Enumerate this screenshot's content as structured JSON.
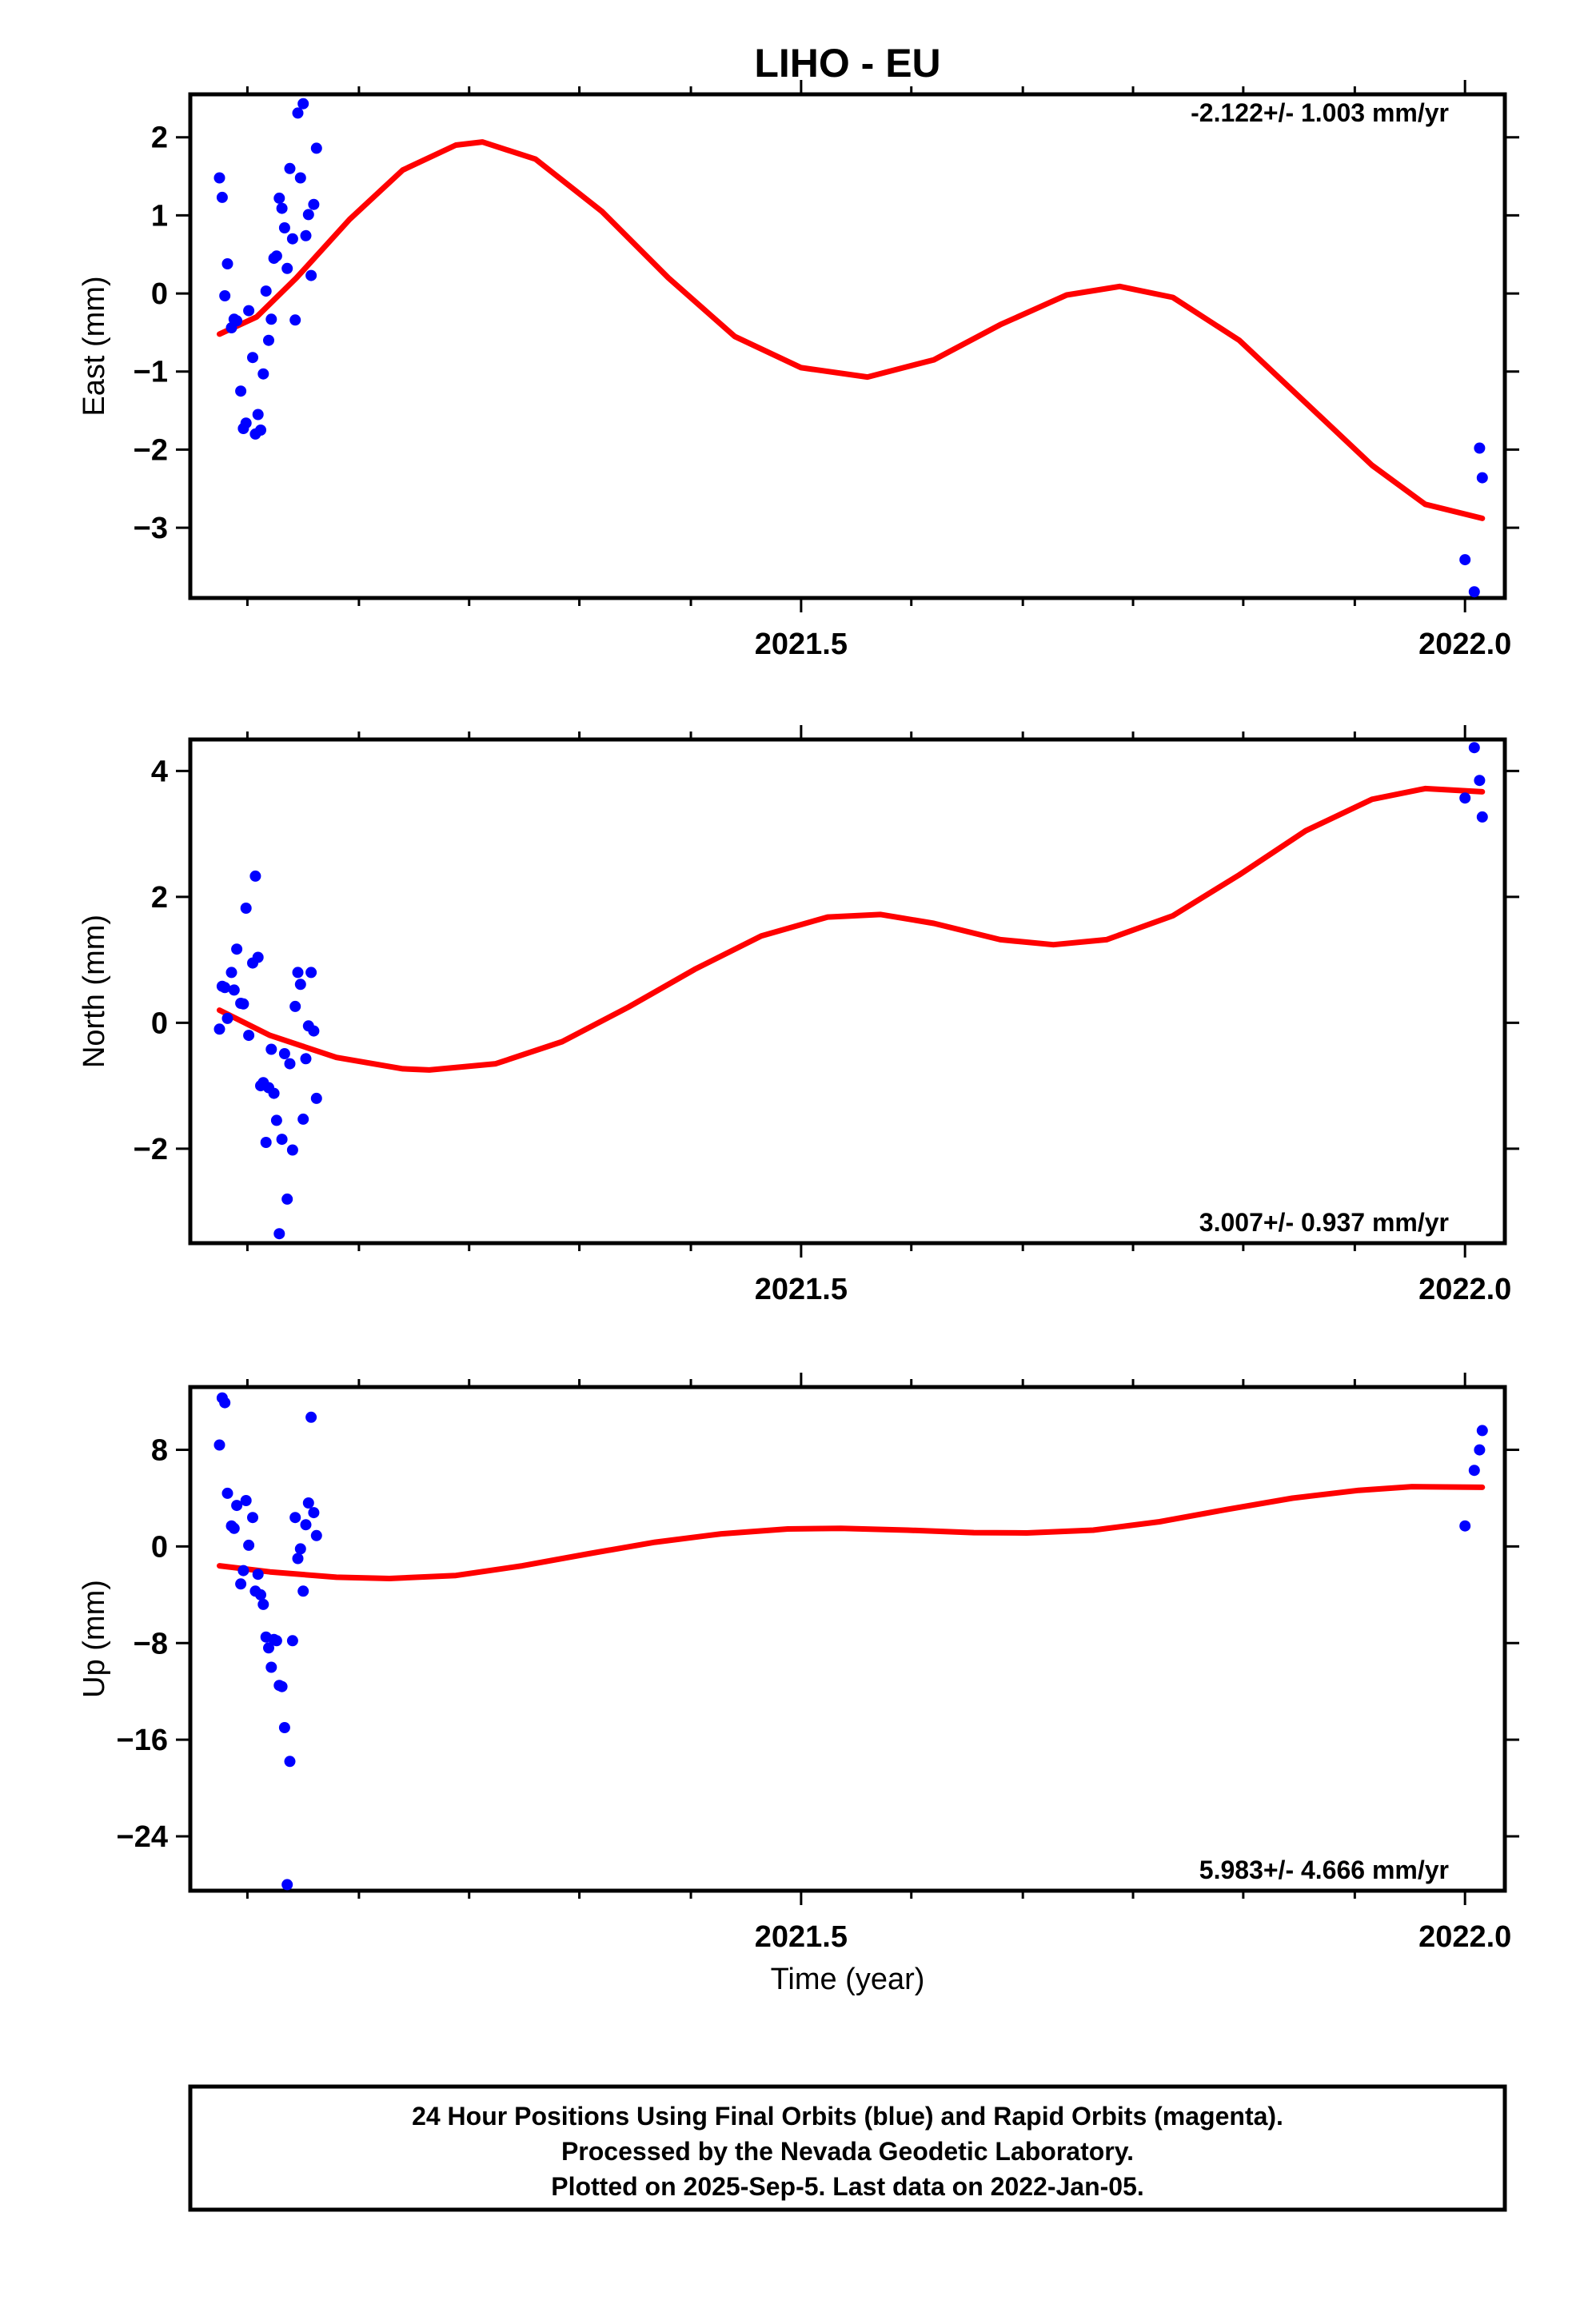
{
  "title": "LIHO - EU",
  "x_axis_label": "Time (year)",
  "footer": {
    "line1": "24 Hour Positions Using Final Orbits (blue) and Rapid Orbits (magenta).",
    "line2": "Processed by the Nevada Geodetic Laboratory.",
    "line3": "Plotted on 2025-Sep-5. Last data on 2022-Jan-05."
  },
  "chart_data": [
    {
      "type": "scatter",
      "ylabel": "East (mm)",
      "rate_label": "-2.122+/- 1.003 mm/yr",
      "xlim": [
        2021.04,
        2022.03
      ],
      "ylim": [
        -3.9,
        2.55
      ],
      "yticks": [
        2,
        1,
        0,
        -1,
        -2,
        -3
      ],
      "ytick_labels": [
        "2",
        "1",
        "0",
        "−1",
        "−2",
        "−3"
      ],
      "xticks_labeled": [
        2021.5,
        2022.0
      ],
      "xtick_labels": [
        "2021.5",
        "2022.0"
      ],
      "xticks_minor": [
        2021.083,
        2021.167,
        2021.25,
        2021.333,
        2021.417,
        2021.583,
        2021.667,
        2021.75,
        2021.833,
        2021.917
      ],
      "grid": false,
      "series": [
        {
          "color": "#0000ff",
          "points": [
            [
              2021.062,
              1.48
            ],
            [
              2021.064,
              1.23
            ],
            [
              2021.066,
              -0.03
            ],
            [
              2021.068,
              0.38
            ],
            [
              2021.071,
              -0.44
            ],
            [
              2021.073,
              -0.33
            ],
            [
              2021.075,
              -0.35
            ],
            [
              2021.078,
              -1.25
            ],
            [
              2021.08,
              -1.73
            ],
            [
              2021.082,
              -1.66
            ],
            [
              2021.084,
              -0.22
            ],
            [
              2021.087,
              -0.82
            ],
            [
              2021.089,
              -1.8
            ],
            [
              2021.091,
              -1.55
            ],
            [
              2021.093,
              -1.75
            ],
            [
              2021.095,
              -1.03
            ],
            [
              2021.097,
              0.03
            ],
            [
              2021.099,
              -0.6
            ],
            [
              2021.101,
              -0.33
            ],
            [
              2021.103,
              0.45
            ],
            [
              2021.105,
              0.48
            ],
            [
              2021.107,
              1.22
            ],
            [
              2021.109,
              1.09
            ],
            [
              2021.111,
              0.84
            ],
            [
              2021.113,
              0.32
            ],
            [
              2021.115,
              1.6
            ],
            [
              2021.117,
              0.7
            ],
            [
              2021.119,
              -0.34
            ],
            [
              2021.121,
              2.31
            ],
            [
              2021.123,
              1.48
            ],
            [
              2021.125,
              2.43
            ],
            [
              2021.127,
              0.74
            ],
            [
              2021.129,
              1.01
            ],
            [
              2021.131,
              0.23
            ],
            [
              2021.133,
              1.14
            ],
            [
              2021.135,
              1.86
            ],
            [
              2022.0,
              -3.41
            ],
            [
              2022.007,
              -3.82
            ],
            [
              2022.011,
              -1.98
            ],
            [
              2022.013,
              -2.36
            ]
          ]
        },
        {
          "color": "#ff0000",
          "curve": [
            [
              2021.062,
              -0.52
            ],
            [
              2021.09,
              -0.3
            ],
            [
              2021.12,
              0.2
            ],
            [
              2021.16,
              0.95
            ],
            [
              2021.2,
              1.58
            ],
            [
              2021.24,
              1.9
            ],
            [
              2021.26,
              1.94
            ],
            [
              2021.3,
              1.72
            ],
            [
              2021.35,
              1.05
            ],
            [
              2021.4,
              0.2
            ],
            [
              2021.45,
              -0.55
            ],
            [
              2021.5,
              -0.95
            ],
            [
              2021.55,
              -1.07
            ],
            [
              2021.6,
              -0.85
            ],
            [
              2021.65,
              -0.4
            ],
            [
              2021.7,
              -0.02
            ],
            [
              2021.74,
              0.09
            ],
            [
              2021.78,
              -0.05
            ],
            [
              2021.83,
              -0.6
            ],
            [
              2021.88,
              -1.4
            ],
            [
              2021.93,
              -2.2
            ],
            [
              2021.97,
              -2.7
            ],
            [
              2022.013,
              -2.88
            ]
          ]
        }
      ]
    },
    {
      "type": "scatter",
      "ylabel": "North (mm)",
      "rate_label": "3.007+/- 0.937 mm/yr",
      "xlim": [
        2021.04,
        2022.03
      ],
      "ylim": [
        -3.5,
        4.5
      ],
      "yticks": [
        4,
        2,
        0,
        -2
      ],
      "ytick_labels": [
        "4",
        "2",
        "0",
        "−2"
      ],
      "xticks_labeled": [
        2021.5,
        2022.0
      ],
      "xtick_labels": [
        "2021.5",
        "2022.0"
      ],
      "xticks_minor": [
        2021.083,
        2021.167,
        2021.25,
        2021.333,
        2021.417,
        2021.583,
        2021.667,
        2021.75,
        2021.833,
        2021.917
      ],
      "grid": false,
      "series": [
        {
          "color": "#0000ff",
          "points": [
            [
              2021.062,
              -0.1
            ],
            [
              2021.064,
              0.58
            ],
            [
              2021.066,
              0.56
            ],
            [
              2021.068,
              0.07
            ],
            [
              2021.071,
              0.8
            ],
            [
              2021.073,
              0.52
            ],
            [
              2021.075,
              1.17
            ],
            [
              2021.078,
              0.31
            ],
            [
              2021.08,
              0.3
            ],
            [
              2021.082,
              1.82
            ],
            [
              2021.084,
              -0.2
            ],
            [
              2021.087,
              0.95
            ],
            [
              2021.089,
              2.33
            ],
            [
              2021.091,
              1.04
            ],
            [
              2021.093,
              -1.0
            ],
            [
              2021.095,
              -0.95
            ],
            [
              2021.097,
              -1.9
            ],
            [
              2021.099,
              -1.03
            ],
            [
              2021.101,
              -0.42
            ],
            [
              2021.103,
              -1.12
            ],
            [
              2021.105,
              -1.55
            ],
            [
              2021.107,
              -3.35
            ],
            [
              2021.109,
              -1.85
            ],
            [
              2021.111,
              -0.49
            ],
            [
              2021.113,
              -2.8
            ],
            [
              2021.115,
              -0.65
            ],
            [
              2021.117,
              -2.02
            ],
            [
              2021.119,
              0.26
            ],
            [
              2021.121,
              0.8
            ],
            [
              2021.123,
              0.61
            ],
            [
              2021.125,
              -1.53
            ],
            [
              2021.127,
              -0.57
            ],
            [
              2021.129,
              -0.05
            ],
            [
              2021.131,
              0.8
            ],
            [
              2021.133,
              -0.13
            ],
            [
              2021.135,
              -1.2
            ],
            [
              2022.0,
              3.57
            ],
            [
              2022.007,
              4.37
            ],
            [
              2022.011,
              3.85
            ],
            [
              2022.013,
              3.27
            ]
          ]
        },
        {
          "color": "#ff0000",
          "curve": [
            [
              2021.062,
              0.2
            ],
            [
              2021.1,
              -0.2
            ],
            [
              2021.15,
              -0.55
            ],
            [
              2021.2,
              -0.73
            ],
            [
              2021.22,
              -0.75
            ],
            [
              2021.27,
              -0.65
            ],
            [
              2021.32,
              -0.3
            ],
            [
              2021.37,
              0.25
            ],
            [
              2021.42,
              0.85
            ],
            [
              2021.47,
              1.38
            ],
            [
              2021.52,
              1.68
            ],
            [
              2021.56,
              1.72
            ],
            [
              2021.6,
              1.58
            ],
            [
              2021.65,
              1.32
            ],
            [
              2021.69,
              1.24
            ],
            [
              2021.73,
              1.32
            ],
            [
              2021.78,
              1.7
            ],
            [
              2021.83,
              2.35
            ],
            [
              2021.88,
              3.05
            ],
            [
              2021.93,
              3.55
            ],
            [
              2021.97,
              3.72
            ],
            [
              2022.013,
              3.67
            ]
          ]
        }
      ]
    },
    {
      "type": "scatter",
      "ylabel": "Up (mm)",
      "rate_label": "5.983+/- 4.666 mm/yr",
      "xlim": [
        2021.04,
        2022.03
      ],
      "ylim": [
        -28.5,
        13.2
      ],
      "yticks": [
        8,
        0,
        -8,
        -16,
        -24
      ],
      "ytick_labels": [
        "8",
        "0",
        "−8",
        "−16",
        "−24"
      ],
      "xticks_labeled": [
        2021.5,
        2022.0
      ],
      "xtick_labels": [
        "2021.5",
        "2022.0"
      ],
      "xticks_minor": [
        2021.083,
        2021.167,
        2021.25,
        2021.333,
        2021.417,
        2021.583,
        2021.667,
        2021.75,
        2021.833,
        2021.917
      ],
      "grid": false,
      "series": [
        {
          "color": "#0000ff",
          "points": [
            [
              2021.062,
              8.4
            ],
            [
              2021.064,
              12.3
            ],
            [
              2021.066,
              11.9
            ],
            [
              2021.068,
              4.4
            ],
            [
              2021.071,
              1.7
            ],
            [
              2021.073,
              1.5
            ],
            [
              2021.075,
              3.4
            ],
            [
              2021.078,
              -3.1
            ],
            [
              2021.08,
              -2.0
            ],
            [
              2021.082,
              3.8
            ],
            [
              2021.084,
              0.1
            ],
            [
              2021.087,
              2.4
            ],
            [
              2021.089,
              -3.7
            ],
            [
              2021.091,
              -2.3
            ],
            [
              2021.093,
              -4.0
            ],
            [
              2021.095,
              -4.8
            ],
            [
              2021.097,
              -7.5
            ],
            [
              2021.099,
              -8.4
            ],
            [
              2021.101,
              -10.0
            ],
            [
              2021.103,
              -7.7
            ],
            [
              2021.105,
              -7.8
            ],
            [
              2021.107,
              -11.5
            ],
            [
              2021.109,
              -11.6
            ],
            [
              2021.111,
              -15.0
            ],
            [
              2021.113,
              -28.0
            ],
            [
              2021.115,
              -17.8
            ],
            [
              2021.117,
              -7.8
            ],
            [
              2021.119,
              2.4
            ],
            [
              2021.121,
              -1.0
            ],
            [
              2021.123,
              -0.2
            ],
            [
              2021.125,
              -3.7
            ],
            [
              2021.127,
              1.8
            ],
            [
              2021.129,
              3.6
            ],
            [
              2021.131,
              10.7
            ],
            [
              2021.133,
              2.8
            ],
            [
              2021.135,
              0.9
            ],
            [
              2022.0,
              1.7
            ],
            [
              2022.007,
              6.3
            ],
            [
              2022.011,
              8.0
            ],
            [
              2022.013,
              9.6
            ]
          ]
        },
        {
          "color": "#ff0000",
          "curve": [
            [
              2021.062,
              -1.6
            ],
            [
              2021.1,
              -2.1
            ],
            [
              2021.15,
              -2.55
            ],
            [
              2021.19,
              -2.65
            ],
            [
              2021.24,
              -2.4
            ],
            [
              2021.29,
              -1.6
            ],
            [
              2021.34,
              -0.6
            ],
            [
              2021.39,
              0.35
            ],
            [
              2021.44,
              1.05
            ],
            [
              2021.49,
              1.45
            ],
            [
              2021.53,
              1.5
            ],
            [
              2021.58,
              1.35
            ],
            [
              2021.63,
              1.15
            ],
            [
              2021.67,
              1.12
            ],
            [
              2021.72,
              1.35
            ],
            [
              2021.77,
              2.05
            ],
            [
              2021.82,
              3.05
            ],
            [
              2021.87,
              4.0
            ],
            [
              2021.92,
              4.65
            ],
            [
              2021.96,
              4.95
            ],
            [
              2022.013,
              4.9
            ]
          ]
        }
      ]
    }
  ]
}
